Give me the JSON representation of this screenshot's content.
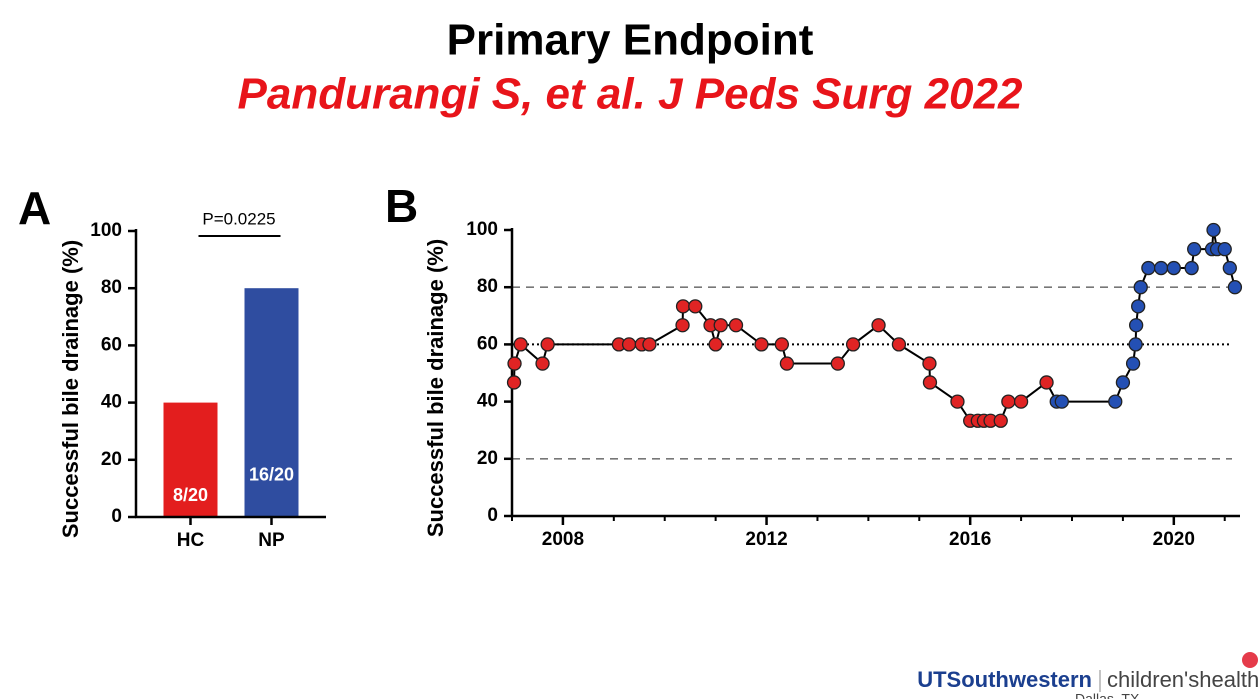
{
  "slide": {
    "title": "Primary Endpoint",
    "subtitle": "Pandurangi S, et al. J Peds Surg 2022",
    "footer": {
      "logo_left": "UTSouthwestern",
      "logo_right": "children'shealth",
      "location": "Dallas, TX"
    }
  },
  "chart_data": [
    {
      "type": "bar",
      "panel": "A",
      "y_label": "Successful bile drainage (%)",
      "categories": [
        "HC",
        "NP"
      ],
      "values": [
        40,
        80
      ],
      "value_labels": [
        "8/20",
        "16/20"
      ],
      "colors": [
        "#e31e1e",
        "#2f4da0"
      ],
      "ylim": [
        0,
        100
      ],
      "yticks": [
        0,
        20,
        40,
        60,
        80,
        100
      ],
      "annotation": "P=0.0225"
    },
    {
      "type": "line",
      "panel": "B",
      "y_label": "Successful bile drainage (%)",
      "xlim": [
        2007,
        2021.3
      ],
      "xticks": [
        2008,
        2012,
        2016,
        2020
      ],
      "minor_xticks": [
        2007,
        2009,
        2010,
        2011,
        2013,
        2014,
        2015,
        2017,
        2018,
        2019,
        2021
      ],
      "ylim": [
        0,
        100
      ],
      "yticks": [
        0,
        20,
        40,
        60,
        80,
        100
      ],
      "reference_lines": [
        {
          "value": 80,
          "style": "dashed"
        },
        {
          "value": 60,
          "style": "dotted"
        },
        {
          "value": 20,
          "style": "dashed"
        }
      ],
      "series": [
        {
          "color": "#e02424",
          "x": [
            2007.04,
            2007.05,
            2007.17,
            2007.6,
            2007.7,
            2009.1,
            2009.3,
            2009.55,
            2009.7,
            2010.35,
            2010.36,
            2010.6,
            2010.9,
            2011.0,
            2011.1,
            2011.4,
            2011.9,
            2012.3,
            2012.4,
            2013.4,
            2013.7,
            2014.2,
            2014.6,
            2015.2,
            2015.21,
            2015.75,
            2016.0,
            2016.15,
            2016.27,
            2016.4,
            2016.6,
            2016.75,
            2017.0,
            2017.5
          ],
          "values": [
            46.7,
            53.3,
            60,
            53.3,
            60,
            60,
            60,
            60,
            60,
            66.7,
            73.3,
            73.3,
            66.7,
            60,
            66.7,
            66.7,
            60,
            60,
            53.3,
            53.3,
            60,
            66.7,
            60,
            53.3,
            46.7,
            40,
            33.3,
            33.3,
            33.3,
            33.3,
            33.3,
            40,
            40,
            46.7
          ]
        },
        {
          "color": "#2450b4",
          "x": [
            2017.7,
            2017.8,
            2018.85,
            2019.0,
            2019.2,
            2019.25,
            2019.26,
            2019.3,
            2019.35,
            2019.5,
            2019.75,
            2020.0,
            2020.35,
            2020.4,
            2020.75,
            2020.78,
            2020.85,
            2021.0,
            2021.1,
            2021.2
          ],
          "values": [
            40,
            40,
            40,
            46.7,
            53.3,
            60,
            66.7,
            73.3,
            80,
            86.7,
            86.7,
            86.7,
            86.7,
            93.3,
            93.3,
            100,
            93.3,
            93.3,
            86.7,
            80
          ]
        }
      ]
    }
  ]
}
